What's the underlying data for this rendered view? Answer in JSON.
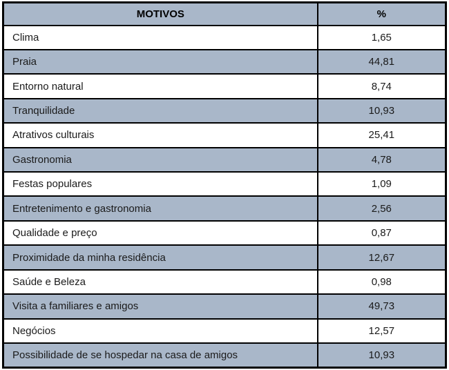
{
  "colors": {
    "shaded_row_bg": "#a9b7c9",
    "plain_row_bg": "#ffffff",
    "border": "#000000",
    "text": "#1a1a1a"
  },
  "table": {
    "headers": {
      "motivo": "MOTIVOS",
      "percent": "%"
    },
    "rows": [
      {
        "motivo": "Clima",
        "percent": "1,65"
      },
      {
        "motivo": "Praia",
        "percent": "44,81"
      },
      {
        "motivo": "Entorno natural",
        "percent": "8,74"
      },
      {
        "motivo": "Tranquilidade",
        "percent": "10,93"
      },
      {
        "motivo": "Atrativos culturais",
        "percent": "25,41"
      },
      {
        "motivo": "Gastronomia",
        "percent": "4,78"
      },
      {
        "motivo": "Festas populares",
        "percent": "1,09"
      },
      {
        "motivo": "Entretenimento e gastronomia",
        "percent": "2,56"
      },
      {
        "motivo": "Qualidade e preço",
        "percent": "0,87"
      },
      {
        "motivo": "Proximidade da minha residência",
        "percent": "12,67"
      },
      {
        "motivo": "Saúde e Beleza",
        "percent": "0,98"
      },
      {
        "motivo": "Visita a familiares e amigos",
        "percent": "49,73"
      },
      {
        "motivo": "Negócios",
        "percent": "12,57"
      },
      {
        "motivo": "Possibilidade de se hospedar na casa de amigos",
        "percent": "10,93"
      }
    ]
  },
  "chart_data": {
    "type": "table",
    "title": "",
    "columns": [
      "MOTIVOS",
      "%"
    ],
    "categories": [
      "Clima",
      "Praia",
      "Entorno natural",
      "Tranquilidade",
      "Atrativos culturais",
      "Gastronomia",
      "Festas populares",
      "Entretenimento e gastronomia",
      "Qualidade e preço",
      "Proximidade da minha residência",
      "Saúde e Beleza",
      "Visita a familiares e amigos",
      "Negócios",
      "Possibilidade de se hospedar na casa de amigos"
    ],
    "values": [
      1.65,
      44.81,
      8.74,
      10.93,
      25.41,
      4.78,
      1.09,
      2.56,
      0.87,
      12.67,
      0.98,
      49.73,
      12.57,
      10.93
    ],
    "value_format": "decimal-comma",
    "layout_hints": {
      "header_shaded": true,
      "alternating_rows_shaded_starting_at_row": 2
    }
  }
}
